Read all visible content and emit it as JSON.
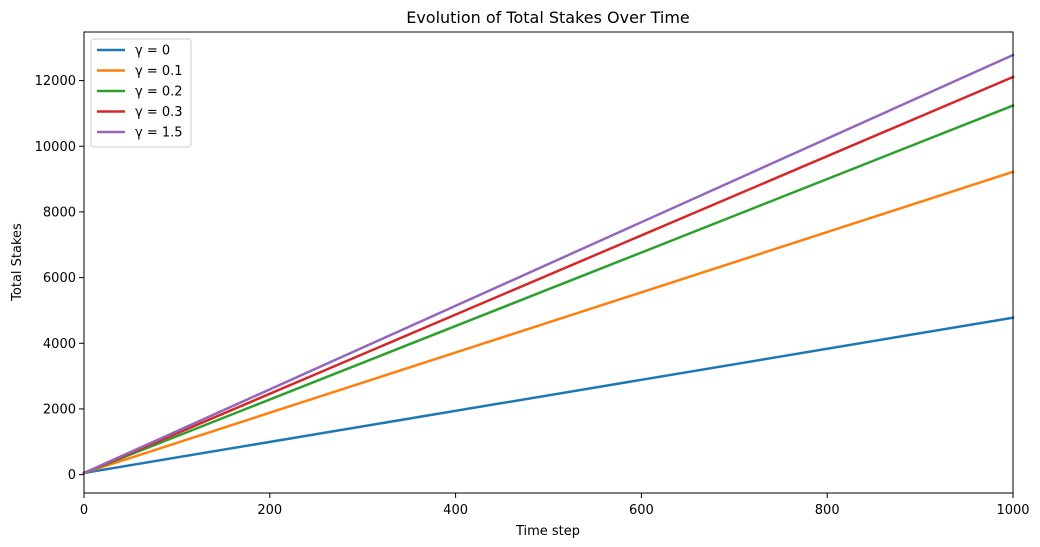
{
  "chart_data": {
    "type": "line",
    "title": "Evolution of Total Stakes Over Time",
    "xlabel": "Time step",
    "ylabel": "Total Stakes",
    "xlim": [
      0,
      1000
    ],
    "ylim": [
      -560,
      13480
    ],
    "xticks": [
      0,
      200,
      400,
      600,
      800,
      1000
    ],
    "yticks": [
      0,
      2000,
      4000,
      6000,
      8000,
      10000,
      12000
    ],
    "grid": false,
    "legend_position": "top-left",
    "series": [
      {
        "name": "γ = 0",
        "color": "#1f77b4",
        "x": [
          0,
          1000
        ],
        "values": [
          50,
          4780
        ]
      },
      {
        "name": "γ = 0.1",
        "color": "#ff7f0e",
        "x": [
          0,
          1000
        ],
        "values": [
          50,
          9220
        ]
      },
      {
        "name": "γ = 0.2",
        "color": "#2ca02c",
        "x": [
          0,
          1000
        ],
        "values": [
          50,
          11240
        ]
      },
      {
        "name": "γ = 0.3",
        "color": "#d62728",
        "x": [
          0,
          1000
        ],
        "values": [
          50,
          12110
        ]
      },
      {
        "name": "γ = 1.5",
        "color": "#9467bd",
        "x": [
          0,
          1000
        ],
        "values": [
          50,
          12780
        ]
      }
    ]
  }
}
